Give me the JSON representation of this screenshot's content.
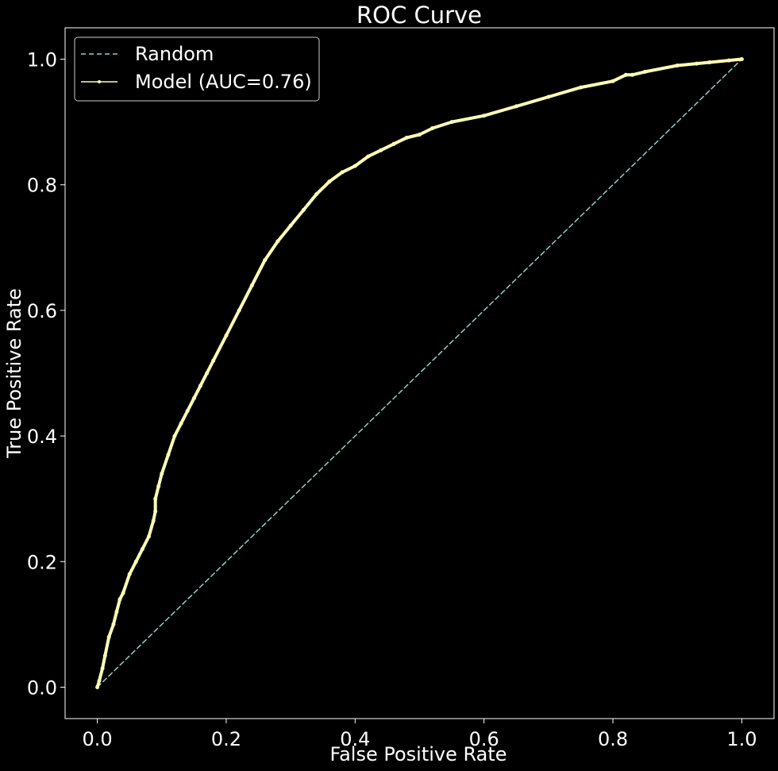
{
  "chart_data": {
    "type": "line",
    "title": "ROC Curve",
    "xlabel": "False Positive Rate",
    "ylabel": "True Positive Rate",
    "xlim": [
      -0.05,
      1.05
    ],
    "ylim": [
      -0.05,
      1.05
    ],
    "xticks": [
      "0.0",
      "0.2",
      "0.4",
      "0.6",
      "0.8",
      "1.0"
    ],
    "yticks": [
      "0.0",
      "0.2",
      "0.4",
      "0.6",
      "0.8",
      "1.0"
    ],
    "grid": false,
    "legend_position": "top-left",
    "background": "#000000",
    "series": [
      {
        "name": "Random",
        "style": "dashed",
        "color": "#8dd3c7",
        "x": [
          0.0,
          1.0
        ],
        "y": [
          0.0,
          1.0
        ]
      },
      {
        "name": "Model (AUC=0.76)",
        "style": "solid-with-markers",
        "color": "#ffffb3",
        "x": [
          0.0,
          0.003,
          0.008,
          0.012,
          0.018,
          0.025,
          0.03,
          0.035,
          0.04,
          0.05,
          0.06,
          0.07,
          0.08,
          0.087,
          0.09,
          0.09,
          0.095,
          0.1,
          0.11,
          0.12,
          0.13,
          0.14,
          0.15,
          0.16,
          0.17,
          0.18,
          0.2,
          0.22,
          0.24,
          0.26,
          0.28,
          0.3,
          0.32,
          0.34,
          0.36,
          0.38,
          0.4,
          0.42,
          0.44,
          0.46,
          0.48,
          0.5,
          0.52,
          0.55,
          0.6,
          0.65,
          0.7,
          0.75,
          0.8,
          0.82,
          0.83,
          0.85,
          0.9,
          0.93,
          0.95,
          0.98,
          1.0
        ],
        "y": [
          0.0,
          0.01,
          0.03,
          0.05,
          0.08,
          0.1,
          0.12,
          0.14,
          0.15,
          0.18,
          0.2,
          0.22,
          0.24,
          0.265,
          0.28,
          0.3,
          0.32,
          0.34,
          0.37,
          0.4,
          0.42,
          0.44,
          0.46,
          0.48,
          0.5,
          0.52,
          0.56,
          0.6,
          0.64,
          0.68,
          0.71,
          0.735,
          0.76,
          0.785,
          0.805,
          0.82,
          0.83,
          0.845,
          0.855,
          0.865,
          0.875,
          0.88,
          0.89,
          0.9,
          0.91,
          0.925,
          0.94,
          0.955,
          0.965,
          0.975,
          0.975,
          0.98,
          0.99,
          0.993,
          0.995,
          0.998,
          1.0
        ]
      }
    ]
  }
}
